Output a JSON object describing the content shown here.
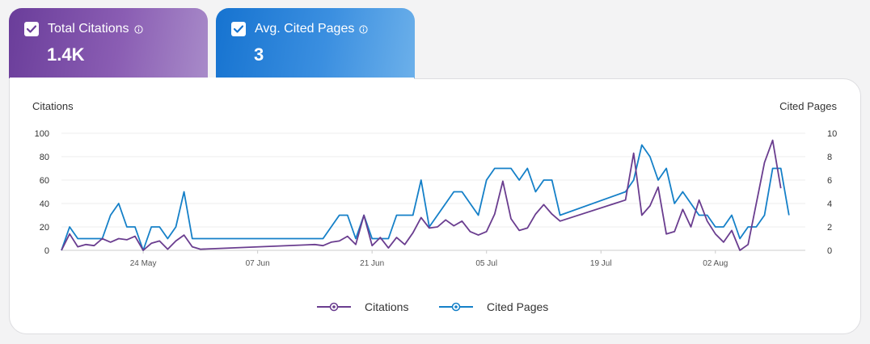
{
  "tabs": [
    {
      "label": "Total Citations",
      "value": "1.4K"
    },
    {
      "label": "Avg. Cited Pages",
      "value": "3"
    }
  ],
  "colors": {
    "citations": "#6a3d8f",
    "cited_pages": "#1580c8",
    "grid": "#eeeeee",
    "baseline": "#cccccc"
  },
  "icons": {
    "checkbox": "check-icon",
    "info": "info-icon",
    "legend": "circle-marker-icon"
  },
  "chart_data": {
    "type": "line",
    "y_left_label": "Citations",
    "y_right_label": "Cited Pages",
    "y_left_ticks": [
      "0",
      "20",
      "40",
      "60",
      "80",
      "100"
    ],
    "y_right_ticks": [
      "0",
      "2",
      "4",
      "6",
      "8",
      "10"
    ],
    "y_left_lim": [
      0,
      100
    ],
    "y_right_lim": [
      0,
      10
    ],
    "x_range": [
      "2025-05-14",
      "2025-08-13"
    ],
    "x_ticks": [
      {
        "date": "2025-05-24",
        "label": "24 May"
      },
      {
        "date": "2025-06-07",
        "label": "07 Jun"
      },
      {
        "date": "2025-06-21",
        "label": "21 Jun"
      },
      {
        "date": "2025-07-05",
        "label": "05 Jul"
      },
      {
        "date": "2025-07-19",
        "label": "19 Jul"
      },
      {
        "date": "2025-08-02",
        "label": "02 Aug"
      }
    ],
    "grid": true,
    "legend": "bottom-center",
    "series": [
      {
        "name": "Citations",
        "axis": "left",
        "points": [
          [
            "2025-05-14",
            0
          ],
          [
            "2025-05-15",
            14
          ],
          [
            "2025-05-16",
            3
          ],
          [
            "2025-05-17",
            5
          ],
          [
            "2025-05-18",
            4
          ],
          [
            "2025-05-19",
            10
          ],
          [
            "2025-05-20",
            7
          ],
          [
            "2025-05-21",
            10
          ],
          [
            "2025-05-22",
            9
          ],
          [
            "2025-05-23",
            12
          ],
          [
            "2025-05-24",
            0
          ],
          [
            "2025-05-25",
            6
          ],
          [
            "2025-05-26",
            8
          ],
          [
            "2025-05-27",
            1
          ],
          [
            "2025-05-28",
            8
          ],
          [
            "2025-05-29",
            13
          ],
          [
            "2025-05-30",
            3
          ],
          [
            "2025-05-31",
            1
          ],
          [
            "2025-06-14",
            5
          ],
          [
            "2025-06-15",
            4
          ],
          [
            "2025-06-16",
            7
          ],
          [
            "2025-06-17",
            8
          ],
          [
            "2025-06-18",
            12
          ],
          [
            "2025-06-19",
            5
          ],
          [
            "2025-06-20",
            30
          ],
          [
            "2025-06-21",
            4
          ],
          [
            "2025-06-22",
            11
          ],
          [
            "2025-06-23",
            2
          ],
          [
            "2025-06-24",
            11
          ],
          [
            "2025-06-25",
            5
          ],
          [
            "2025-06-26",
            15
          ],
          [
            "2025-06-27",
            28
          ],
          [
            "2025-06-28",
            19
          ],
          [
            "2025-06-29",
            20
          ],
          [
            "2025-06-30",
            26
          ],
          [
            "2025-07-01",
            21
          ],
          [
            "2025-07-02",
            25
          ],
          [
            "2025-07-03",
            16
          ],
          [
            "2025-07-04",
            13
          ],
          [
            "2025-07-05",
            16
          ],
          [
            "2025-07-06",
            31
          ],
          [
            "2025-07-07",
            59
          ],
          [
            "2025-07-08",
            27
          ],
          [
            "2025-07-09",
            17
          ],
          [
            "2025-07-10",
            19
          ],
          [
            "2025-07-11",
            31
          ],
          [
            "2025-07-12",
            39
          ],
          [
            "2025-07-13",
            31
          ],
          [
            "2025-07-14",
            25
          ],
          [
            "2025-07-22",
            43
          ],
          [
            "2025-07-23",
            83
          ],
          [
            "2025-07-24",
            30
          ],
          [
            "2025-07-25",
            38
          ],
          [
            "2025-07-26",
            54
          ],
          [
            "2025-07-27",
            14
          ],
          [
            "2025-07-28",
            16
          ],
          [
            "2025-07-29",
            35
          ],
          [
            "2025-07-30",
            20
          ],
          [
            "2025-07-31",
            43
          ],
          [
            "2025-08-01",
            25
          ],
          [
            "2025-08-02",
            14
          ],
          [
            "2025-08-03",
            7
          ],
          [
            "2025-08-04",
            17
          ],
          [
            "2025-08-05",
            0
          ],
          [
            "2025-08-06",
            5
          ],
          [
            "2025-08-08",
            75
          ],
          [
            "2025-08-09",
            94
          ],
          [
            "2025-08-10",
            53
          ]
        ]
      },
      {
        "name": "Cited Pages",
        "axis": "right",
        "points": [
          [
            "2025-05-14",
            0
          ],
          [
            "2025-05-15",
            2
          ],
          [
            "2025-05-16",
            1
          ],
          [
            "2025-05-17",
            1
          ],
          [
            "2025-05-18",
            1
          ],
          [
            "2025-05-19",
            1
          ],
          [
            "2025-05-20",
            3
          ],
          [
            "2025-05-21",
            4
          ],
          [
            "2025-05-22",
            2
          ],
          [
            "2025-05-23",
            2
          ],
          [
            "2025-05-24",
            0
          ],
          [
            "2025-05-25",
            2
          ],
          [
            "2025-05-26",
            2
          ],
          [
            "2025-05-27",
            1
          ],
          [
            "2025-05-28",
            2
          ],
          [
            "2025-05-29",
            5
          ],
          [
            "2025-05-30",
            1
          ],
          [
            "2025-06-15",
            1
          ],
          [
            "2025-06-16",
            2
          ],
          [
            "2025-06-17",
            3
          ],
          [
            "2025-06-18",
            3
          ],
          [
            "2025-06-19",
            1
          ],
          [
            "2025-06-20",
            3
          ],
          [
            "2025-06-21",
            1
          ],
          [
            "2025-06-22",
            1
          ],
          [
            "2025-06-23",
            1
          ],
          [
            "2025-06-24",
            3
          ],
          [
            "2025-06-25",
            3
          ],
          [
            "2025-06-26",
            3
          ],
          [
            "2025-06-27",
            6
          ],
          [
            "2025-06-28",
            2
          ],
          [
            "2025-07-01",
            5
          ],
          [
            "2025-07-02",
            5
          ],
          [
            "2025-07-03",
            4
          ],
          [
            "2025-07-04",
            3
          ],
          [
            "2025-07-05",
            6
          ],
          [
            "2025-07-06",
            7
          ],
          [
            "2025-07-07",
            7
          ],
          [
            "2025-07-08",
            7
          ],
          [
            "2025-07-09",
            6
          ],
          [
            "2025-07-10",
            7
          ],
          [
            "2025-07-11",
            5
          ],
          [
            "2025-07-12",
            6
          ],
          [
            "2025-07-13",
            6
          ],
          [
            "2025-07-14",
            3
          ],
          [
            "2025-07-22",
            5
          ],
          [
            "2025-07-23",
            6
          ],
          [
            "2025-07-24",
            9
          ],
          [
            "2025-07-25",
            8
          ],
          [
            "2025-07-26",
            6
          ],
          [
            "2025-07-27",
            7
          ],
          [
            "2025-07-28",
            4
          ],
          [
            "2025-07-29",
            5
          ],
          [
            "2025-07-30",
            4
          ],
          [
            "2025-07-31",
            3
          ],
          [
            "2025-08-01",
            3
          ],
          [
            "2025-08-02",
            2
          ],
          [
            "2025-08-03",
            2
          ],
          [
            "2025-08-04",
            3
          ],
          [
            "2025-08-05",
            1
          ],
          [
            "2025-08-06",
            2
          ],
          [
            "2025-08-07",
            2
          ],
          [
            "2025-08-08",
            3
          ],
          [
            "2025-08-09",
            7
          ],
          [
            "2025-08-10",
            7
          ],
          [
            "2025-08-11",
            3
          ]
        ]
      }
    ]
  }
}
